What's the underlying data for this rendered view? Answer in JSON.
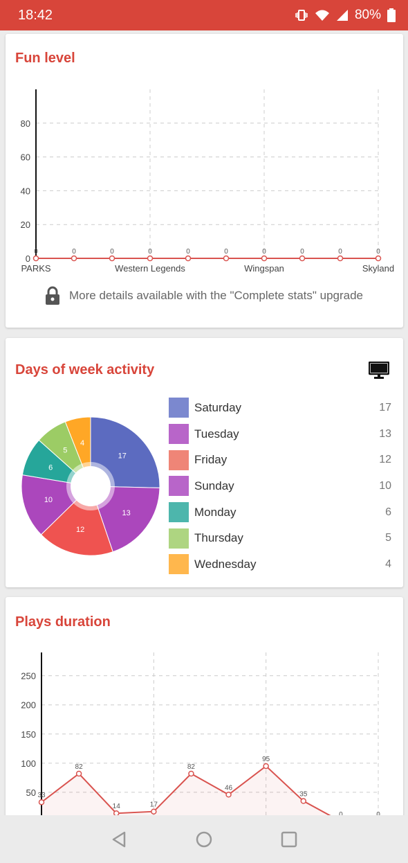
{
  "status_bar": {
    "time": "18:42",
    "battery": "80%"
  },
  "fun_level": {
    "title": "Fun level",
    "upgrade_text": "More details available with the \"Complete stats\" upgrade",
    "chart_data": {
      "type": "line",
      "categories": [
        "PARKS",
        "",
        "",
        "Western Legends",
        "",
        "",
        "Wingspan",
        "",
        "",
        "Skyland"
      ],
      "values": [
        0,
        0,
        0,
        0,
        0,
        0,
        0,
        0,
        0,
        0
      ],
      "visible_x_ticks": [
        "PARKS",
        "Western Legends",
        "Wingspan",
        "Skyland"
      ],
      "y_ticks": [
        0,
        20,
        40,
        60,
        80
      ],
      "ylim": [
        0,
        100
      ],
      "grid": true
    }
  },
  "days_of_week": {
    "title": "Days of week activity",
    "chart_data": {
      "type": "pie",
      "categories": [
        "Saturday",
        "Tuesday",
        "Friday",
        "Sunday",
        "Monday",
        "Thursday",
        "Wednesday"
      ],
      "values": [
        17,
        13,
        12,
        10,
        6,
        5,
        4
      ],
      "colors": [
        "#7b88cf",
        "#b865c9",
        "#ef8577",
        "#b865c9",
        "#4db6ac",
        "#aed581",
        "#ffb74d"
      ],
      "pie_colors": [
        "#5c6bc0",
        "#ab47bc",
        "#ef5350",
        "#ab47bc",
        "#26a69a",
        "#9ccc65",
        "#ffa726"
      ],
      "legend_position": "right"
    }
  },
  "plays_duration": {
    "title": "Plays duration",
    "chart_data": {
      "type": "area",
      "values": [
        33,
        82,
        14,
        17,
        82,
        46,
        95,
        35,
        0,
        0
      ],
      "y_ticks": [
        50,
        100,
        150,
        200,
        250
      ],
      "ylim": [
        0,
        290
      ],
      "grid": true
    }
  },
  "nav": {
    "back": "back-icon",
    "home": "home-icon",
    "recents": "recents-icon"
  }
}
